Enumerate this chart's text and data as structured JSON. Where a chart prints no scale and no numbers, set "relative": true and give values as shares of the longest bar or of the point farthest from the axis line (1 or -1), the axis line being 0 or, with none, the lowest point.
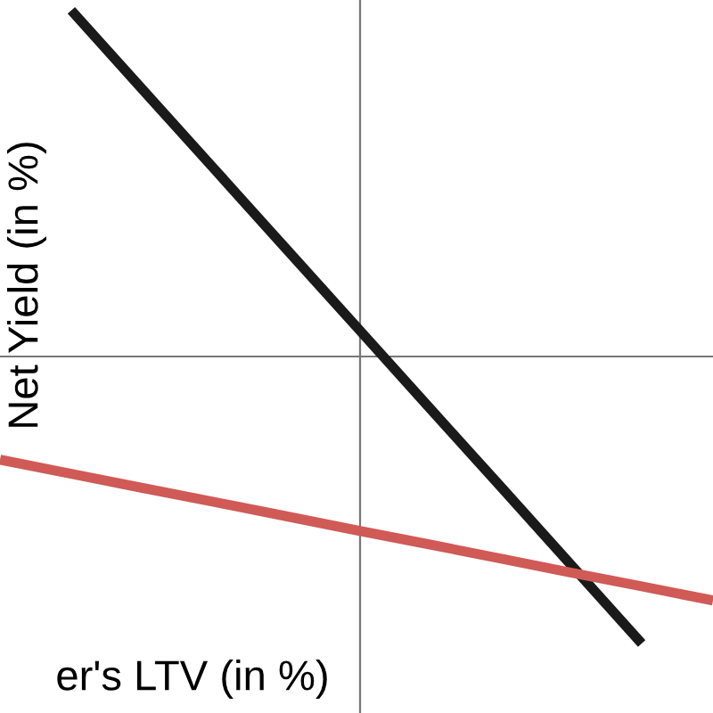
{
  "chart_data": {
    "type": "line",
    "relative": true,
    "xlabel": "er's LTV (in %)",
    "ylabel": "Net Yield (in %)",
    "categories": [
      null,
      null,
      null,
      null,
      null,
      null,
      null,
      null,
      null,
      null,
      null
    ],
    "series": [
      {
        "color": "#1a1a1a",
        "values": [
          null,
          1,
          0.771,
          0.543,
          0.314,
          0.086,
          -0.143,
          -0.371,
          -0.6,
          -0.829,
          null
        ]
      },
      {
        "color": "#d05a56",
        "values": [
          -0.298,
          -0.339,
          -0.38,
          -0.42,
          -0.461,
          -0.502,
          -0.542,
          -0.583,
          -0.624,
          -0.664,
          -0.705
        ]
      }
    ],
    "marker": "none",
    "line_style": "solid"
  }
}
